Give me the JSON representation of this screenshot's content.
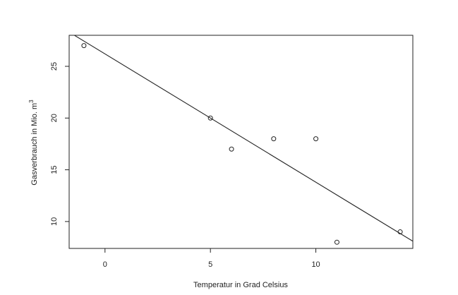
{
  "chart_data": {
    "type": "scatter",
    "title": "",
    "xlabel": "Temperatur in Grad Celsius",
    "ylabel": "Gasverbrauch in Mio. m",
    "ylabel_superscript": "3",
    "xlim": [
      -1.7,
      14.6
    ],
    "ylim": [
      7.4,
      28.0
    ],
    "x_ticks": [
      0,
      5,
      10
    ],
    "y_ticks": [
      10,
      15,
      20,
      25
    ],
    "grid": false,
    "legend": "none",
    "points": [
      {
        "x": -1,
        "y": 27
      },
      {
        "x": 5,
        "y": 20
      },
      {
        "x": 6,
        "y": 17
      },
      {
        "x": 8,
        "y": 18
      },
      {
        "x": 10,
        "y": 18
      },
      {
        "x": 11,
        "y": 8
      },
      {
        "x": 14,
        "y": 9
      }
    ],
    "regression_line": {
      "intercept": 26.2,
      "slope": -1.24
    },
    "colors": {
      "points": "#222222",
      "line": "#222222",
      "axes": "#222222"
    }
  }
}
